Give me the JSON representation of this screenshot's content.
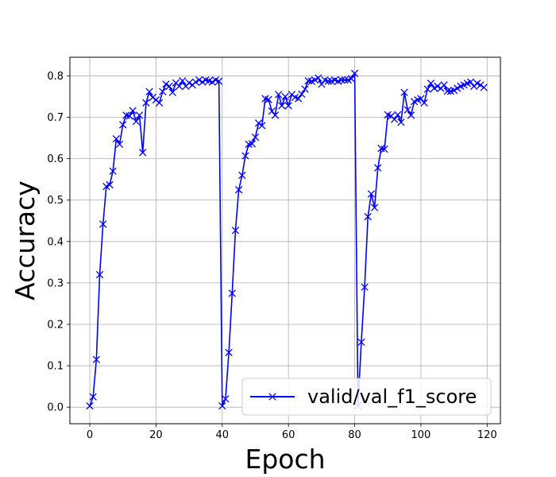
{
  "chart_data": {
    "type": "line",
    "title": "",
    "xlabel": "Epoch",
    "ylabel": "Accuracy",
    "xlim": [
      -6,
      124
    ],
    "ylim": [
      -0.04,
      0.845
    ],
    "xticks": [
      0,
      20,
      40,
      60,
      80,
      100,
      120
    ],
    "yticks": [
      0.0,
      0.1,
      0.2,
      0.3,
      0.4,
      0.5,
      0.6,
      0.7,
      0.8
    ],
    "grid": true,
    "legend_position": "lower-right",
    "series": [
      {
        "name": "valid/val_f1_score",
        "color": "#0000ff",
        "marker": "x",
        "x": [
          0,
          1,
          2,
          3,
          4,
          5,
          6,
          7,
          8,
          9,
          10,
          11,
          12,
          13,
          14,
          15,
          16,
          17,
          18,
          19,
          20,
          21,
          22,
          23,
          24,
          25,
          26,
          27,
          28,
          29,
          30,
          31,
          32,
          33,
          34,
          35,
          36,
          37,
          38,
          39,
          40,
          41,
          42,
          43,
          44,
          45,
          46,
          47,
          48,
          49,
          50,
          51,
          52,
          53,
          54,
          55,
          56,
          57,
          58,
          59,
          60,
          61,
          62,
          63,
          64,
          65,
          66,
          67,
          68,
          69,
          70,
          71,
          72,
          73,
          74,
          75,
          76,
          77,
          78,
          79,
          80,
          81,
          82,
          83,
          84,
          85,
          86,
          87,
          88,
          89,
          90,
          91,
          92,
          93,
          94,
          95,
          96,
          97,
          98,
          99,
          100,
          101,
          102,
          103,
          104,
          105,
          106,
          107,
          108,
          109,
          110,
          111,
          112,
          113,
          114,
          115,
          116,
          117,
          118,
          119
        ],
        "y": [
          0.003,
          0.025,
          0.115,
          0.32,
          0.442,
          0.533,
          0.537,
          0.57,
          0.648,
          0.635,
          0.682,
          0.705,
          0.703,
          0.716,
          0.69,
          0.705,
          0.615,
          0.735,
          0.762,
          0.748,
          0.742,
          0.735,
          0.762,
          0.78,
          0.775,
          0.76,
          0.783,
          0.775,
          0.788,
          0.775,
          0.783,
          0.778,
          0.785,
          0.79,
          0.785,
          0.79,
          0.788,
          0.785,
          0.79,
          0.787,
          0.003,
          0.02,
          0.132,
          0.275,
          0.427,
          0.525,
          0.56,
          0.607,
          0.635,
          0.636,
          0.652,
          0.686,
          0.68,
          0.745,
          0.743,
          0.715,
          0.705,
          0.755,
          0.728,
          0.75,
          0.728,
          0.755,
          0.748,
          0.745,
          0.756,
          0.768,
          0.788,
          0.787,
          0.79,
          0.795,
          0.78,
          0.79,
          0.787,
          0.787,
          0.79,
          0.787,
          0.79,
          0.79,
          0.79,
          0.793,
          0.806,
          0.003,
          0.157,
          0.29,
          0.46,
          0.515,
          0.482,
          0.578,
          0.625,
          0.623,
          0.706,
          0.703,
          0.695,
          0.706,
          0.688,
          0.76,
          0.718,
          0.705,
          0.738,
          0.742,
          0.745,
          0.735,
          0.768,
          0.782,
          0.77,
          0.775,
          0.77,
          0.778,
          0.763,
          0.763,
          0.765,
          0.77,
          0.775,
          0.778,
          0.782,
          0.785,
          0.775,
          0.782,
          0.778,
          0.772
        ]
      }
    ]
  }
}
